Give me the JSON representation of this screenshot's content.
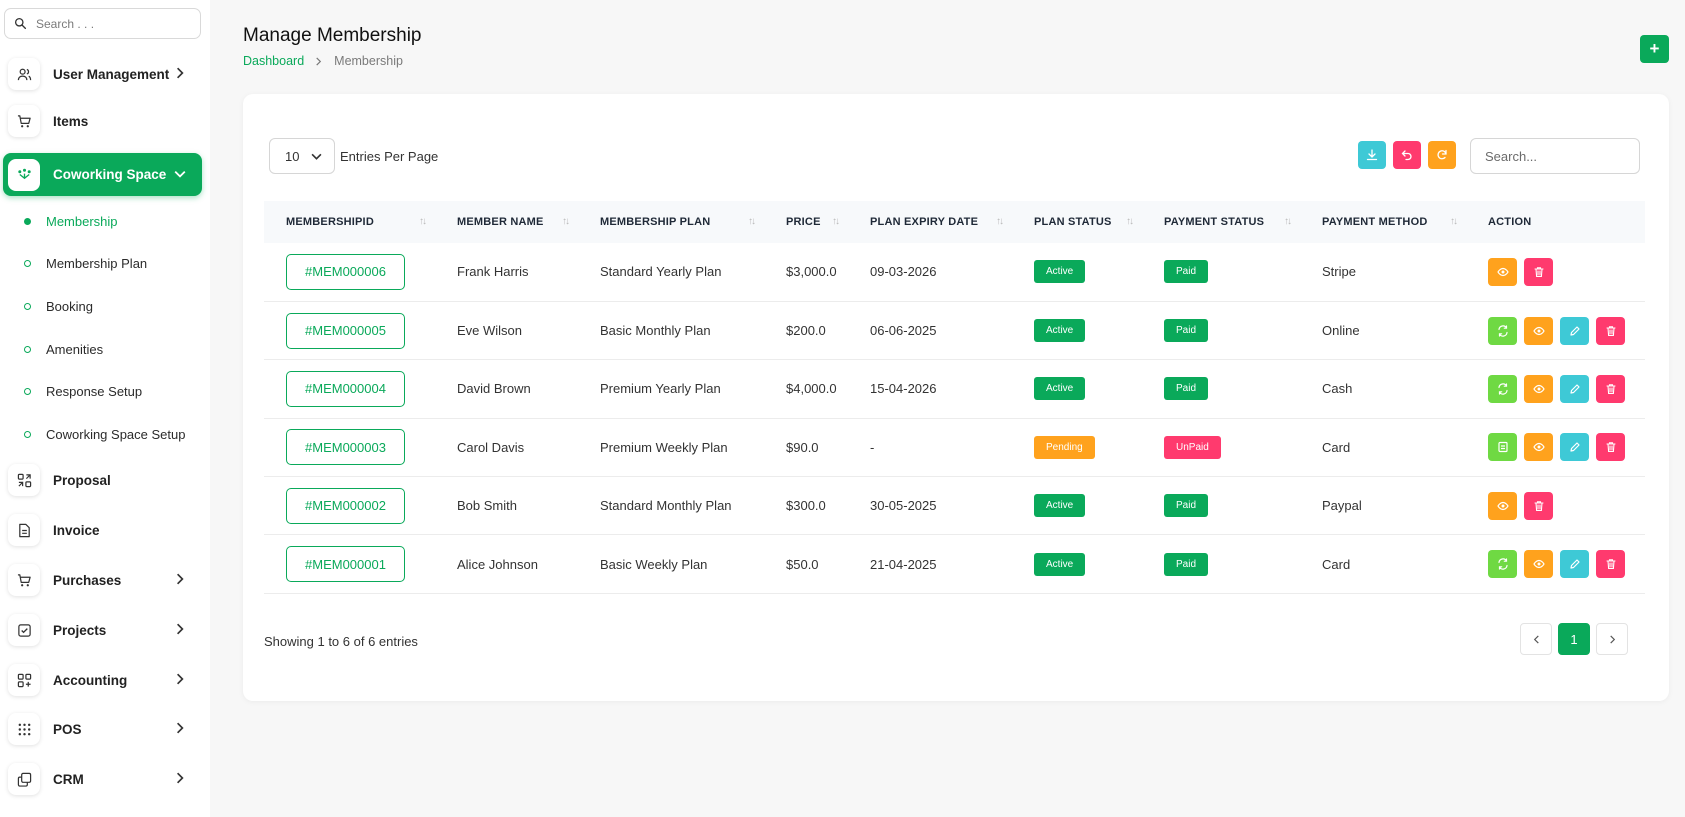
{
  "sidebar": {
    "search_placeholder": "Search . . .",
    "items_top": [
      {
        "label": "User Management",
        "icon": "users-icon",
        "chevron": true
      },
      {
        "label": "Items",
        "icon": "cart-icon",
        "chevron": false
      }
    ],
    "active": {
      "label": "Coworking Space",
      "icon": "coworking-icon"
    },
    "sub_items": [
      "Membership",
      "Membership Plan",
      "Booking",
      "Amenities",
      "Response Setup",
      "Coworking Space Setup"
    ],
    "items_bottom": [
      {
        "label": "Proposal",
        "icon": "proposal-icon",
        "chevron": false
      },
      {
        "label": "Invoice",
        "icon": "file-icon",
        "chevron": false
      },
      {
        "label": "Purchases",
        "icon": "cart-icon",
        "chevron": true
      },
      {
        "label": "Projects",
        "icon": "checkbox-icon",
        "chevron": true
      },
      {
        "label": "Accounting",
        "icon": "apps-icon",
        "chevron": true
      },
      {
        "label": "POS",
        "icon": "grid-dots-icon",
        "chevron": true
      },
      {
        "label": "CRM",
        "icon": "layers-icon",
        "chevron": true
      }
    ]
  },
  "header": {
    "title": "Manage Membership",
    "breadcrumb_link": "Dashboard",
    "breadcrumb_current": "Membership",
    "add_label": "+"
  },
  "table_controls": {
    "entries_value": "10",
    "entries_label": "Entries Per Page",
    "search_placeholder": "Search..."
  },
  "columns": [
    "MEMBERSHIPID",
    "MEMBER NAME",
    "MEMBERSHIP PLAN",
    "PRICE",
    "PLAN EXPIRY DATE",
    "PLAN STATUS",
    "PAYMENT STATUS",
    "PAYMENT METHOD",
    "ACTION"
  ],
  "rows": [
    {
      "id": "#MEM000006",
      "name": "Frank Harris",
      "plan": "Standard Yearly Plan",
      "price": "$3,000.0",
      "expiry": "09-03-2026",
      "plan_status": "Active",
      "payment_status": "Paid",
      "method": "Stripe",
      "actions": [
        "view",
        "delete"
      ]
    },
    {
      "id": "#MEM000005",
      "name": "Eve Wilson",
      "plan": "Basic Monthly Plan",
      "price": "$200.0",
      "expiry": "06-06-2025",
      "plan_status": "Active",
      "payment_status": "Paid",
      "method": "Online",
      "actions": [
        "renew",
        "view",
        "edit",
        "delete"
      ]
    },
    {
      "id": "#MEM000004",
      "name": "David Brown",
      "plan": "Premium Yearly Plan",
      "price": "$4,000.0",
      "expiry": "15-04-2026",
      "plan_status": "Active",
      "payment_status": "Paid",
      "method": "Cash",
      "actions": [
        "renew",
        "view",
        "edit",
        "delete"
      ]
    },
    {
      "id": "#MEM000003",
      "name": "Carol Davis",
      "plan": "Premium Weekly Plan",
      "price": "$90.0",
      "expiry": "-",
      "plan_status": "Pending",
      "payment_status": "UnPaid",
      "method": "Card",
      "actions": [
        "pay",
        "view",
        "edit",
        "delete"
      ]
    },
    {
      "id": "#MEM000002",
      "name": "Bob Smith",
      "plan": "Standard Monthly Plan",
      "price": "$300.0",
      "expiry": "30-05-2025",
      "plan_status": "Active",
      "payment_status": "Paid",
      "method": "Paypal",
      "actions": [
        "view",
        "delete"
      ]
    },
    {
      "id": "#MEM000001",
      "name": "Alice Johnson",
      "plan": "Basic Weekly Plan",
      "price": "$50.0",
      "expiry": "21-04-2025",
      "plan_status": "Active",
      "payment_status": "Paid",
      "method": "Card",
      "actions": [
        "renew",
        "view",
        "edit",
        "delete"
      ]
    }
  ],
  "footer": {
    "showing": "Showing 1 to 6 of 6 entries",
    "current_page": "1"
  },
  "colors": {
    "primary": "#0aa95a",
    "amber": "#ffa21d",
    "rose": "#ff3a6e",
    "cyan": "#3ec9d6",
    "lime": "#6fd943"
  }
}
